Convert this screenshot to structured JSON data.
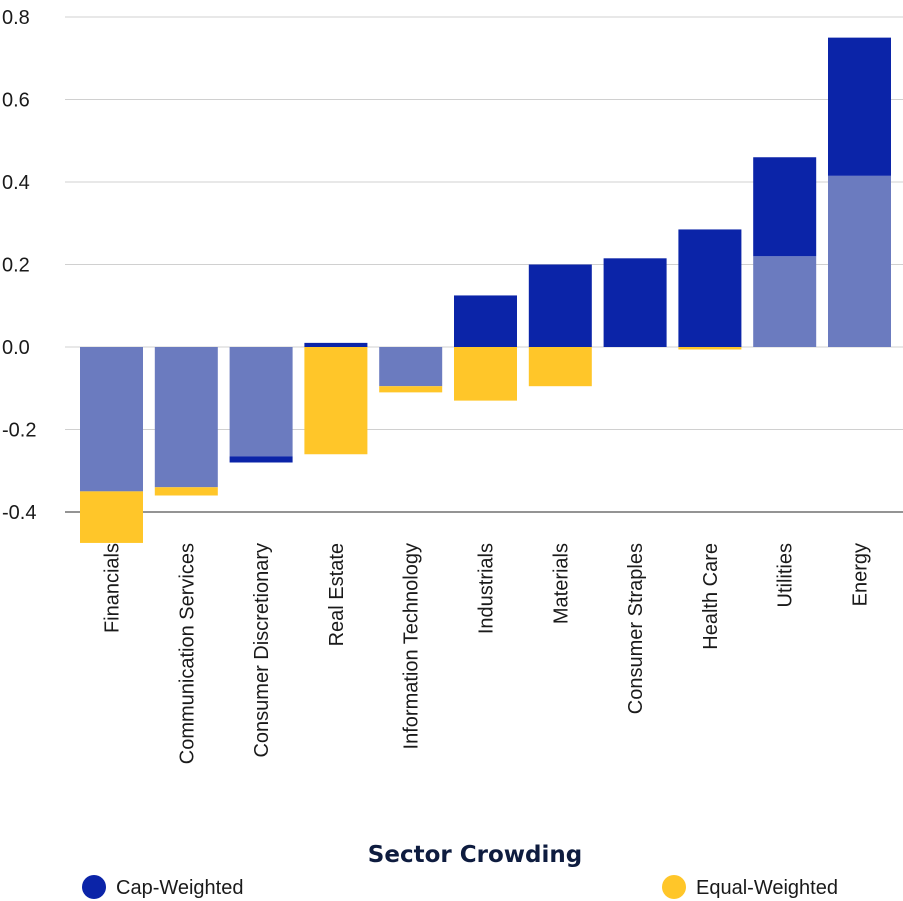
{
  "chart_data": {
    "type": "bar",
    "title": "",
    "xlabel": "Sector Crowding",
    "ylabel": "",
    "ylim": [
      -0.4,
      0.8
    ],
    "y_ticks": [
      "0.8",
      "0.6",
      "0.4",
      "0.2",
      "0.0",
      "-0.2",
      "-0.4"
    ],
    "y_tick_values": [
      0.8,
      0.6,
      0.4,
      0.2,
      0.0,
      -0.2,
      -0.4
    ],
    "grid": true,
    "legend_position": "bottom",
    "categories": [
      "Financials",
      "Communication Services",
      "Consumer Discretionary",
      "Real Estate",
      "Information Technology",
      "Industrials",
      "Materials",
      "Consumer Straples",
      "Health Care",
      "Utilities",
      "Energy"
    ],
    "series": [
      {
        "name": "Cap-Weighted",
        "color": "#0b24a8",
        "values": [
          -0.35,
          -0.34,
          -0.28,
          0.01,
          -0.095,
          0.125,
          0.2,
          0.215,
          0.285,
          0.46,
          0.75
        ]
      },
      {
        "name": "Equal-Weighted",
        "color": "#ffc629",
        "values": [
          -0.475,
          -0.36,
          -0.265,
          -0.26,
          -0.11,
          -0.13,
          -0.095,
          0.0,
          -0.005,
          0.22,
          0.415
        ]
      }
    ],
    "overlap_color": "#6b7bbf"
  }
}
